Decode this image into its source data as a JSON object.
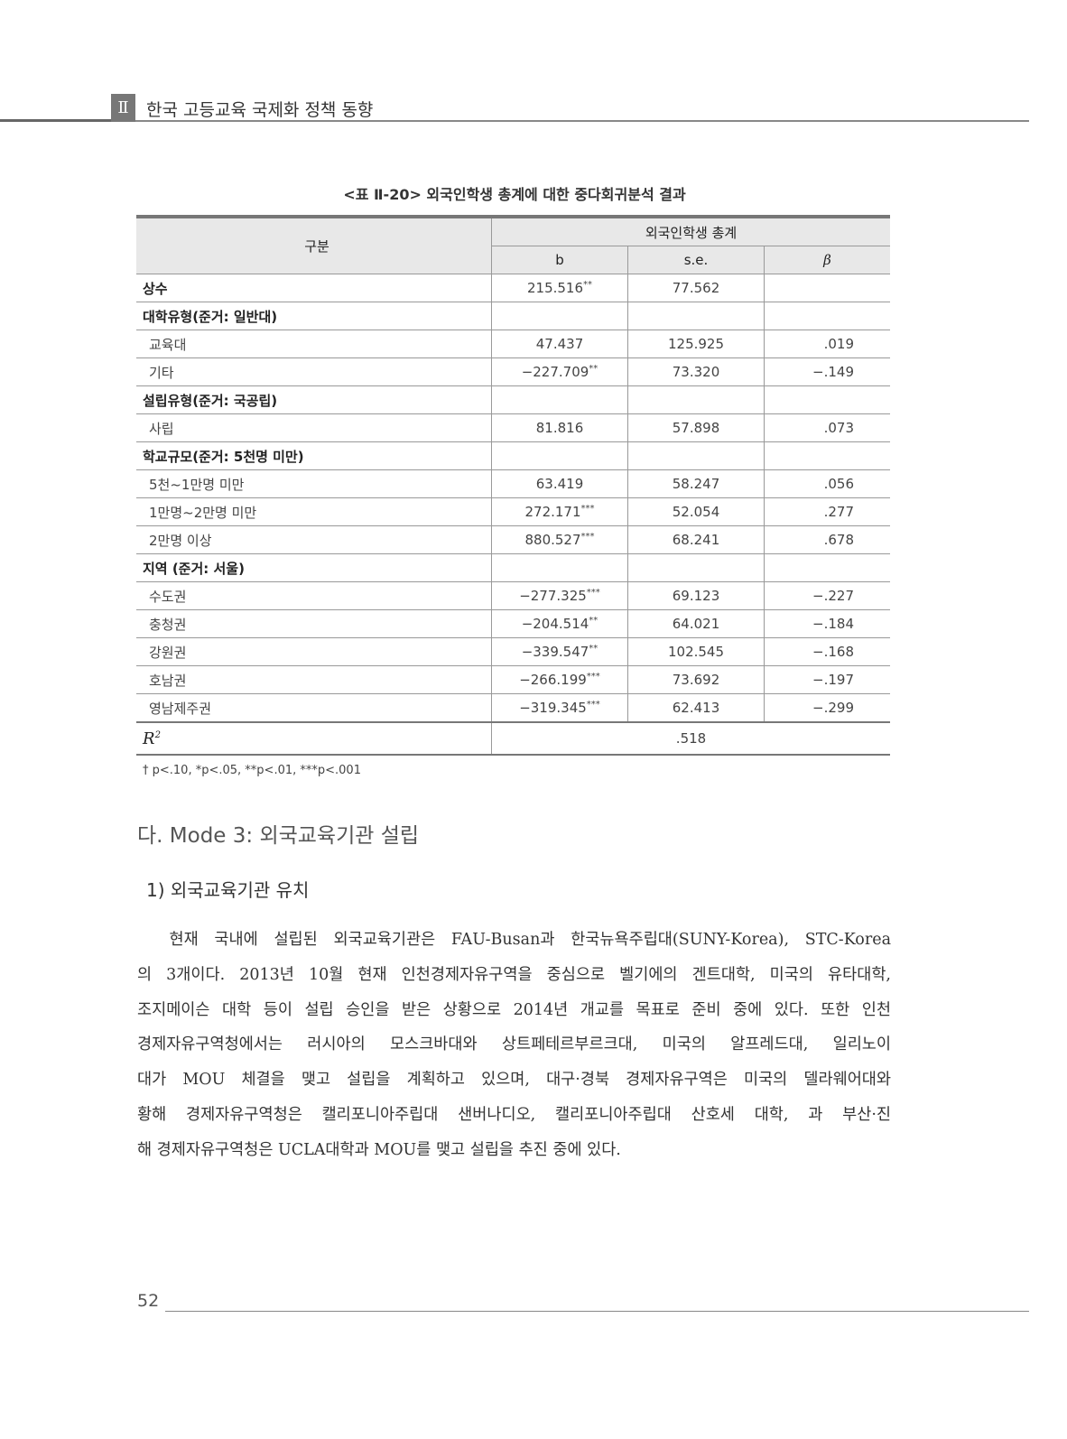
{
  "header": {
    "chapter": "Ⅱ",
    "title": "한국 고등교육 국제화 정책 동향"
  },
  "table": {
    "caption": "<표 Ⅱ-20> 외국인학생 총계에 대한 중다회귀분석 결과",
    "col_group": "구분",
    "col_span": "외국인학생 총계",
    "cols": [
      "b",
      "s.e.",
      "β"
    ],
    "rows": [
      {
        "label": "상수",
        "type": "cat",
        "b": "215.516",
        "sig": "**",
        "se": "77.562",
        "beta": ""
      },
      {
        "label": "대학유형(준거: 일반대)",
        "type": "cat",
        "b": "",
        "sig": "",
        "se": "",
        "beta": ""
      },
      {
        "label": "교육대",
        "type": "sub",
        "b": "47.437",
        "sig": "",
        "se": "125.925",
        "beta": ".019"
      },
      {
        "label": "기타",
        "type": "sub",
        "b": "−227.709",
        "sig": "**",
        "se": "73.320",
        "beta": "−.149"
      },
      {
        "label": "설립유형(준거: 국공립)",
        "type": "cat",
        "b": "",
        "sig": "",
        "se": "",
        "beta": ""
      },
      {
        "label": "사립",
        "type": "sub",
        "b": "81.816",
        "sig": "",
        "se": "57.898",
        "beta": ".073"
      },
      {
        "label": "학교규모(준거: 5천명 미만)",
        "type": "cat",
        "b": "",
        "sig": "",
        "se": "",
        "beta": ""
      },
      {
        "label": "5천~1만명 미만",
        "type": "sub",
        "b": "63.419",
        "sig": "",
        "se": "58.247",
        "beta": ".056"
      },
      {
        "label": "1만명~2만명 미만",
        "type": "sub",
        "b": "272.171",
        "sig": "***",
        "se": "52.054",
        "beta": ".277"
      },
      {
        "label": "2만명 이상",
        "type": "sub",
        "b": "880.527",
        "sig": "***",
        "se": "68.241",
        "beta": ".678"
      },
      {
        "label": "지역 (준거: 서울)",
        "type": "cat",
        "b": "",
        "sig": "",
        "se": "",
        "beta": ""
      },
      {
        "label": "수도권",
        "type": "sub",
        "b": "−277.325",
        "sig": "***",
        "se": "69.123",
        "beta": "−.227"
      },
      {
        "label": "충청권",
        "type": "sub",
        "b": "−204.514",
        "sig": "**",
        "se": "64.021",
        "beta": "−.184"
      },
      {
        "label": "강원권",
        "type": "sub",
        "b": "−339.547",
        "sig": "**",
        "se": "102.545",
        "beta": "−.168"
      },
      {
        "label": "호남권",
        "type": "sub",
        "b": "−266.199",
        "sig": "***",
        "se": "73.692",
        "beta": "−.197"
      },
      {
        "label": "영남제주권",
        "type": "sub",
        "b": "−319.345",
        "sig": "***",
        "se": "62.413",
        "beta": "−.299"
      }
    ],
    "r2_label": "R",
    "r2_sup": "2",
    "r2_value": ".518",
    "note": "† p<.10, *p<.05, **p<.01, ***p<.001"
  },
  "section": {
    "heading": "다. Mode 3: 외국교육기관 설립",
    "subheading": "1) 외국교육기관 유치"
  },
  "body_lines": [
    "  현재 국내에 설립된 외국교육기관은 FAU-Busan과 한국뉴욕주립대(SUNY-Korea), STC-Korea",
    "의 3개이다. 2013년 10월 현재 인천경제자유구역을 중심으로 벨기에의 겐트대학, 미국의 유타대학,",
    "조지메이슨 대학 등이 설립 승인을 받은 상황으로 2014년 개교를 목표로 준비 중에 있다. 또한 인천",
    "경제자유구역청에서는 러시아의 모스크바대와 상트페테르부르크대, 미국의 알프레드대, 일리노이",
    "대가 MOU 체결을 맺고 설립을 계획하고 있으며, 대구·경북 경제자유구역은 미국의 델라웨어대와",
    "황해 경제자유구역청은 캘리포니아주립대 샌버나디오, 캘리포니아주립대 산호세 대학, 과 부산·진",
    "해 경제자유구역청은 UCLA대학과 MOU를 맺고 설립을 추진 중에 있다."
  ],
  "page_number": "52"
}
